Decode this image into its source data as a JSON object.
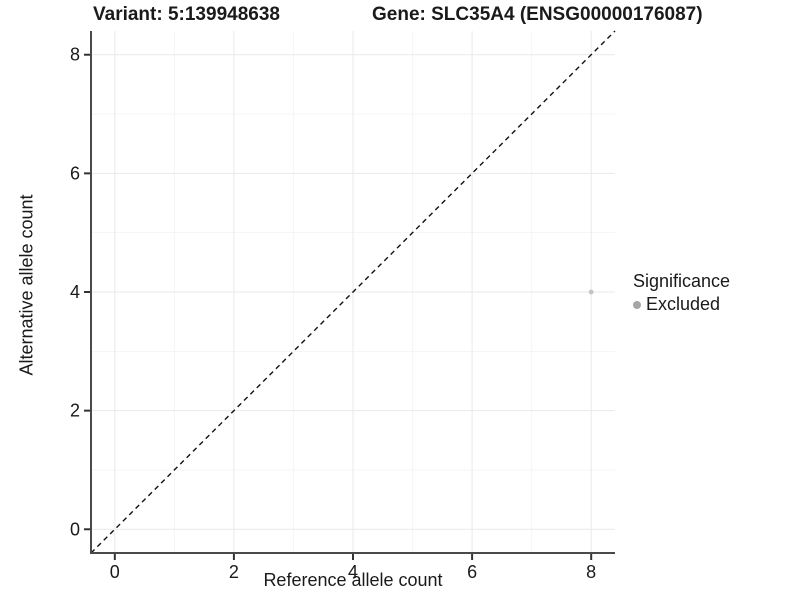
{
  "chart_data": {
    "type": "scatter",
    "titles": {
      "left": "Variant: 5:139948638",
      "right": "Gene: SLC35A4 (ENSG00000176087)"
    },
    "xlabel": "Reference allele count",
    "ylabel": "Alternative allele count",
    "xlim": [
      -0.4,
      8.4
    ],
    "ylim": [
      -0.4,
      8.4
    ],
    "x_major_ticks": [
      0,
      2,
      4,
      6,
      8
    ],
    "y_major_ticks": [
      0,
      2,
      4,
      6,
      8
    ],
    "x_minor_ticks": [
      1,
      3,
      5,
      7
    ],
    "y_minor_ticks": [
      1,
      3,
      5,
      7
    ],
    "grid": {
      "major": true,
      "minor": true
    },
    "series": [
      {
        "name": "Excluded",
        "color": "#c3c3c3",
        "points": [
          {
            "x": 8,
            "y": 4
          }
        ]
      }
    ],
    "identity_line": {
      "style": "dashed",
      "from": -0.4,
      "to": 8.4,
      "color": "#111111"
    },
    "legend": {
      "title": "Significance",
      "position": "right",
      "items": [
        {
          "label": "Excluded",
          "color": "#a6a6a6"
        }
      ]
    },
    "colors": {
      "grid_major": "#e9e9e9",
      "grid_minor": "#f5f5f5",
      "axis_line": "#4a4a4a",
      "tick_mark": "#333333",
      "text": "#1a1a1a"
    }
  }
}
